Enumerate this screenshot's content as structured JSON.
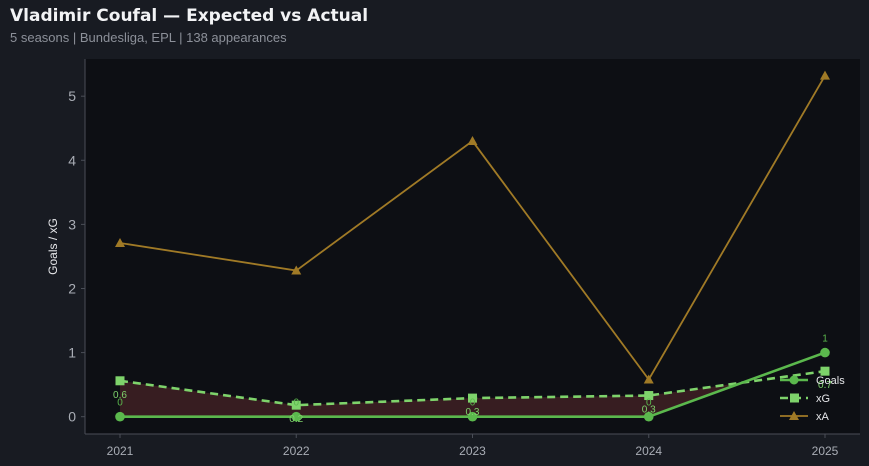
{
  "header": {
    "title": "Vladimir Coufal — Expected vs Actual",
    "subtitle": "5 seasons | Bundesliga, EPL | 138 appearances"
  },
  "colors": {
    "background": "#181b22",
    "plot_background": "#0d0f14",
    "goals": "#5bb84d",
    "xg": "#7ed36b",
    "xa": "#a07a26",
    "fill_under": "#3a1f22",
    "tick_text": "#a9adb5",
    "axis_line": "#4a4e57",
    "legend_text": "#e6e7ea"
  },
  "chart_data": {
    "type": "line",
    "title": "Vladimir Coufal — Expected vs Actual",
    "subtitle": "5 seasons | Bundesliga, EPL | 138 appearances",
    "xlabel": "",
    "ylabel": "Goals / xG",
    "categories": [
      "2021",
      "2022",
      "2023",
      "2024",
      "2025"
    ],
    "ylim": [
      -0.27,
      5.58
    ],
    "yticks": [
      0,
      1,
      2,
      3,
      4,
      5
    ],
    "grid": false,
    "legend_position": "bottom-right",
    "series": [
      {
        "name": "Goals",
        "values": [
          0,
          0,
          0,
          0,
          1
        ],
        "labels": [
          "0",
          "0",
          "0",
          "0",
          "1"
        ],
        "marker": "circle",
        "style": "solid"
      },
      {
        "name": "xG",
        "values": [
          0.56,
          0.18,
          0.29,
          0.33,
          0.71
        ],
        "labels": [
          "0.6",
          "0.2",
          "0.3",
          "0.3",
          "0.7"
        ],
        "marker": "square",
        "style": "dashed"
      },
      {
        "name": "xA",
        "values": [
          2.71,
          2.28,
          4.3,
          0.58,
          5.32
        ],
        "marker": "triangle",
        "style": "solid"
      }
    ]
  }
}
